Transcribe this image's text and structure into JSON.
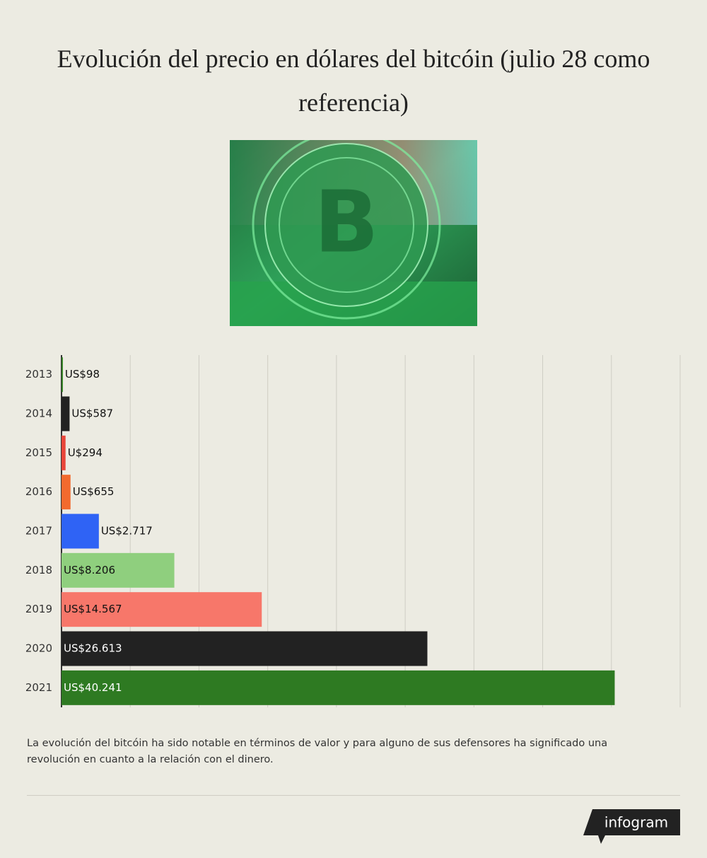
{
  "chart_data": {
    "type": "bar",
    "orientation": "horizontal",
    "title": "Evolución del precio en dólares del bitcóin  (julio 28 como referencia)",
    "categories": [
      "2013",
      "2014",
      "2015",
      "2016",
      "2017",
      "2018",
      "2019",
      "2020",
      "2021"
    ],
    "values": [
      98,
      587,
      294,
      655,
      2717,
      8206,
      14567,
      26613,
      40241
    ],
    "value_labels": [
      "US$98",
      "US$587",
      "U$294",
      "US$655",
      "US$2.717",
      "US$8.206",
      "US$14.567",
      "US$26.613",
      "US$40.241"
    ],
    "colors": [
      "#2e7d1f",
      "#222222",
      "#e8463a",
      "#f26a2e",
      "#2f63f5",
      "#8fcf7e",
      "#f7776a",
      "#222222",
      "#2e7a22"
    ],
    "xlim": [
      0,
      45000
    ],
    "xticks": [
      0,
      5000,
      10000,
      15000,
      20000,
      25000,
      30000,
      35000,
      40000,
      45000
    ],
    "grid": true
  },
  "note": "La evolución del bitcóin ha sido notable en términos de valor y para alguno de sus defensores ha significado una revolución en cuanto a la relación con el dinero.",
  "logo": "infogram"
}
